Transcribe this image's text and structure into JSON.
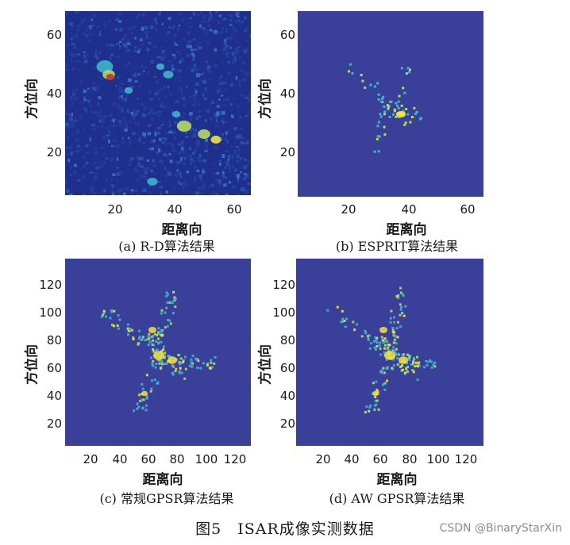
{
  "figure": {
    "caption": "图5　ISAR成像实测数据",
    "watermark": "CSDN @BinaryStarXin"
  },
  "panels": [
    {
      "id": "a",
      "caption": "(a)  R-D算法结果",
      "xlabel": "距离向",
      "ylabel": "方位向",
      "xticks": [
        "20",
        "40",
        "60"
      ],
      "yticks": [
        "20",
        "40",
        "60"
      ]
    },
    {
      "id": "b",
      "caption": "(b)  ESPRIT算法结果",
      "xlabel": "距离向",
      "ylabel": "方位向",
      "xticks": [
        "20",
        "40",
        "60"
      ],
      "yticks": [
        "20",
        "40",
        "60"
      ]
    },
    {
      "id": "c",
      "caption": "(c)  常规GPSR算法结果",
      "xlabel": "距离向",
      "ylabel": "方位向",
      "xticks": [
        "20",
        "40",
        "60",
        "80",
        "100",
        "120"
      ],
      "yticks": [
        "20",
        "40",
        "60",
        "80",
        "100",
        "120"
      ]
    },
    {
      "id": "d",
      "caption": "(d)  AW GPSR算法结果",
      "xlabel": "距离向",
      "ylabel": "方位向",
      "xticks": [
        "20",
        "40",
        "60",
        "80",
        "100",
        "120"
      ],
      "yticks": [
        "20",
        "40",
        "60",
        "80",
        "100",
        "120"
      ]
    }
  ],
  "colors": {
    "background": "#3a3f9a",
    "noise_dark": "#1f2f8c",
    "scatter_low": "#3fb5c8",
    "scatter_mid": "#b8d960",
    "scatter_high": "#f2e33a",
    "peak": "#c0392b"
  }
}
